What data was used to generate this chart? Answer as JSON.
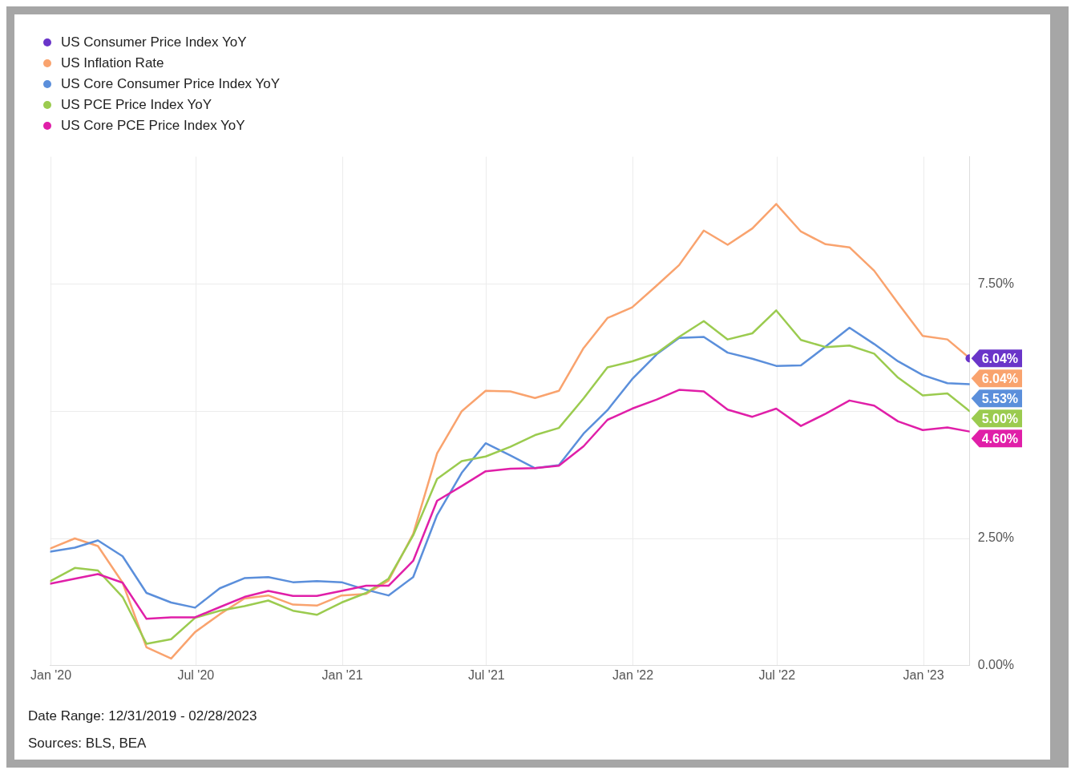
{
  "chart_data": {
    "type": "line",
    "x": [
      "2019-12-31",
      "2020-01-31",
      "2020-02-29",
      "2020-03-31",
      "2020-04-30",
      "2020-05-31",
      "2020-06-30",
      "2020-07-31",
      "2020-08-31",
      "2020-09-30",
      "2020-10-31",
      "2020-11-30",
      "2020-12-31",
      "2021-01-31",
      "2021-02-28",
      "2021-03-31",
      "2021-04-30",
      "2021-05-31",
      "2021-06-30",
      "2021-07-31",
      "2021-08-31",
      "2021-09-30",
      "2021-10-31",
      "2021-11-30",
      "2021-12-31",
      "2022-01-31",
      "2022-02-28",
      "2022-03-31",
      "2022-04-30",
      "2022-05-31",
      "2022-06-30",
      "2022-07-31",
      "2022-08-31",
      "2022-09-30",
      "2022-10-31",
      "2022-11-30",
      "2022-12-31",
      "2023-01-31",
      "2023-02-28"
    ],
    "series": [
      {
        "name": "US Consumer Price Index YoY",
        "color": "#6a35c9",
        "marker": "circle",
        "values": [
          null,
          null,
          null,
          null,
          null,
          null,
          null,
          null,
          null,
          null,
          null,
          null,
          null,
          null,
          null,
          null,
          null,
          null,
          null,
          null,
          null,
          null,
          null,
          null,
          null,
          null,
          null,
          null,
          null,
          null,
          null,
          null,
          null,
          null,
          null,
          null,
          null,
          null,
          6.04
        ],
        "value_labels": [
          null,
          null,
          null,
          null,
          null,
          null,
          null,
          null,
          null,
          null,
          null,
          null,
          null,
          null,
          null,
          null,
          null,
          null,
          null,
          null,
          null,
          null,
          null,
          null,
          null,
          null,
          null,
          null,
          null,
          null,
          null,
          null,
          null,
          null,
          null,
          null,
          null,
          null,
          "6.04%"
        ]
      },
      {
        "name": "US Inflation Rate",
        "color": "#f9a36e",
        "values": [
          2.3,
          2.5,
          2.35,
          1.63,
          0.36,
          0.14,
          0.66,
          1.01,
          1.32,
          1.38,
          1.2,
          1.18,
          1.38,
          1.41,
          1.67,
          2.59,
          4.17,
          5.0,
          5.4,
          5.39,
          5.26,
          5.4,
          6.24,
          6.83,
          7.04,
          7.47,
          7.87,
          8.55,
          8.27,
          8.59,
          9.07,
          8.53,
          8.28,
          8.22,
          7.76,
          7.12,
          6.48,
          6.41,
          6.04
        ],
        "value_labels": [
          null,
          null,
          null,
          null,
          null,
          null,
          null,
          null,
          null,
          null,
          null,
          null,
          null,
          null,
          null,
          null,
          null,
          null,
          null,
          null,
          null,
          null,
          null,
          null,
          null,
          null,
          null,
          null,
          null,
          null,
          null,
          null,
          null,
          null,
          null,
          null,
          null,
          null,
          "6.04%"
        ]
      },
      {
        "name": "US Core Consumer Price Index YoY",
        "color": "#5b8fdb",
        "values": [
          2.24,
          2.32,
          2.46,
          2.15,
          1.43,
          1.24,
          1.14,
          1.52,
          1.72,
          1.74,
          1.64,
          1.66,
          1.64,
          1.49,
          1.38,
          1.74,
          2.96,
          3.79,
          4.37,
          4.13,
          3.88,
          3.94,
          4.56,
          5.02,
          5.63,
          6.12,
          6.44,
          6.46,
          6.15,
          6.03,
          5.89,
          5.9,
          6.27,
          6.64,
          6.32,
          5.98,
          5.71,
          5.55,
          5.53
        ],
        "value_labels": [
          null,
          null,
          null,
          null,
          null,
          null,
          null,
          null,
          null,
          null,
          null,
          null,
          null,
          null,
          null,
          null,
          null,
          null,
          null,
          null,
          null,
          null,
          null,
          null,
          null,
          null,
          null,
          null,
          null,
          null,
          null,
          null,
          null,
          null,
          null,
          null,
          null,
          null,
          "5.53%"
        ]
      },
      {
        "name": "US PCE Price Index YoY",
        "color": "#9bcb4f",
        "values": [
          1.66,
          1.92,
          1.87,
          1.35,
          0.43,
          0.52,
          0.94,
          1.08,
          1.17,
          1.28,
          1.08,
          1.0,
          1.24,
          1.43,
          1.71,
          2.56,
          3.67,
          4.02,
          4.11,
          4.3,
          4.53,
          4.67,
          5.25,
          5.86,
          5.98,
          6.14,
          6.46,
          6.77,
          6.41,
          6.53,
          6.98,
          6.4,
          6.26,
          6.29,
          6.13,
          5.66,
          5.31,
          5.35,
          5.0
        ],
        "value_labels": [
          null,
          null,
          null,
          null,
          null,
          null,
          null,
          null,
          null,
          null,
          null,
          null,
          null,
          null,
          null,
          null,
          null,
          null,
          null,
          null,
          null,
          null,
          null,
          null,
          null,
          null,
          null,
          null,
          null,
          null,
          null,
          null,
          null,
          null,
          null,
          null,
          null,
          null,
          "5.00%"
        ]
      },
      {
        "name": "US Core PCE Price Index YoY",
        "color": "#e01fa8",
        "values": [
          1.61,
          1.71,
          1.8,
          1.63,
          0.92,
          0.95,
          0.95,
          1.15,
          1.35,
          1.47,
          1.37,
          1.37,
          1.47,
          1.57,
          1.57,
          2.06,
          3.24,
          3.53,
          3.82,
          3.87,
          3.88,
          3.93,
          4.31,
          4.83,
          5.05,
          5.23,
          5.42,
          5.39,
          5.03,
          4.89,
          5.05,
          4.71,
          4.95,
          5.21,
          5.11,
          4.8,
          4.63,
          4.68,
          4.6
        ],
        "value_labels": [
          null,
          null,
          null,
          null,
          null,
          null,
          null,
          null,
          null,
          null,
          null,
          null,
          null,
          null,
          null,
          null,
          null,
          null,
          null,
          null,
          null,
          null,
          null,
          null,
          null,
          null,
          null,
          null,
          null,
          null,
          null,
          null,
          null,
          null,
          null,
          null,
          null,
          null,
          "4.60%"
        ]
      }
    ],
    "xlim": [
      "2019-12-31",
      "2023-02-28"
    ],
    "xticks": [
      {
        "value": "2020-01-01",
        "label": "Jan '20"
      },
      {
        "value": "2020-07-01",
        "label": "Jul '20"
      },
      {
        "value": "2021-01-01",
        "label": "Jan '21"
      },
      {
        "value": "2021-07-01",
        "label": "Jul '21"
      },
      {
        "value": "2022-01-01",
        "label": "Jan '22"
      },
      {
        "value": "2022-07-01",
        "label": "Jul '22"
      },
      {
        "value": "2023-01-01",
        "label": "Jan '23"
      }
    ],
    "ylim": [
      0,
      10
    ],
    "yticks": [
      {
        "value": 0,
        "label": "0.00%"
      },
      {
        "value": 2.5,
        "label": "2.50%"
      },
      {
        "value": 5,
        "label": null
      },
      {
        "value": 7.5,
        "label": "7.50%"
      }
    ],
    "grid": true,
    "legend": "top left",
    "marker": "none",
    "line_style": "solid",
    "annotations": [
      "Date Range: 12/31/2019 - 02/28/2023",
      "Sources: BLS, BEA"
    ]
  }
}
